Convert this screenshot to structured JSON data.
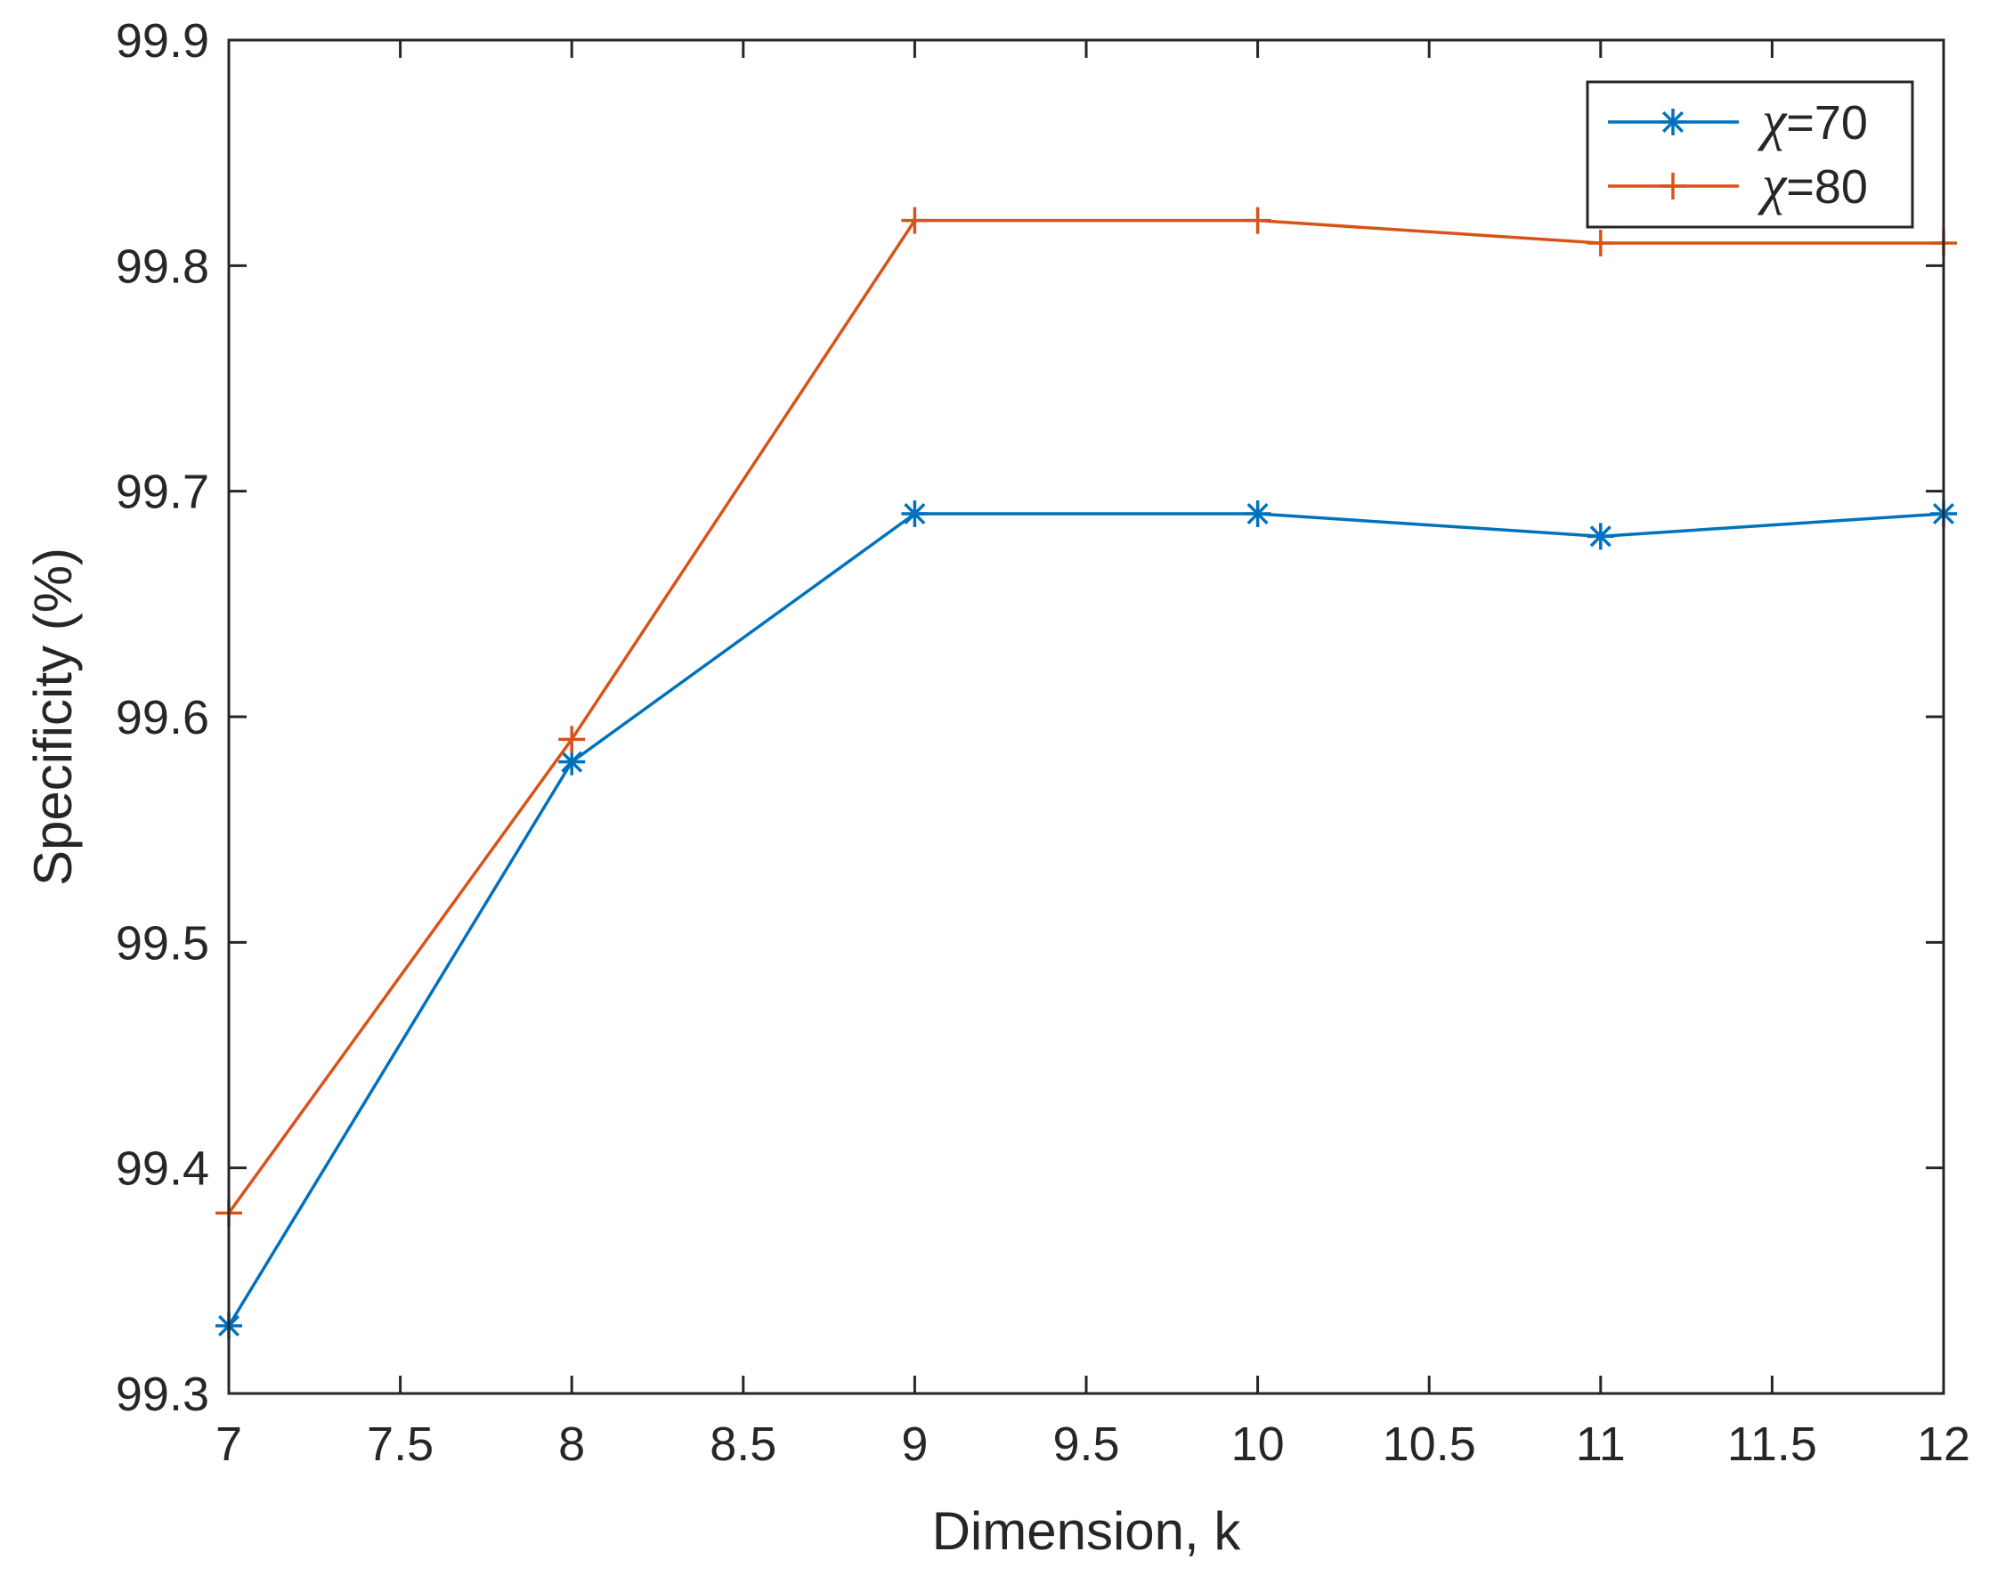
{
  "colors": {
    "series_1": "#0072BD",
    "series_2": "#D95319",
    "axis": "#262626",
    "background": "#ffffff"
  },
  "chart_data": {
    "type": "line",
    "title": "",
    "xlabel": "Dimension, k",
    "ylabel": "Specificity (%)",
    "xlim": [
      7,
      12
    ],
    "ylim": [
      99.3,
      99.9
    ],
    "x_ticks": [
      "7",
      "7.5",
      "8",
      "8.5",
      "9",
      "9.5",
      "10",
      "10.5",
      "11",
      "11.5",
      "12"
    ],
    "y_ticks": [
      "99.3",
      "99.4",
      "99.5",
      "99.6",
      "99.7",
      "99.8",
      "99.9"
    ],
    "grid": false,
    "legend_position": "top-right",
    "x": [
      7,
      8,
      9,
      10,
      11,
      12
    ],
    "series": [
      {
        "name": "χ=70",
        "legend_symbol": "χ",
        "legend_text": "=70",
        "marker": "asterisk",
        "color": "#0072BD",
        "values": [
          99.33,
          99.58,
          99.69,
          99.69,
          99.68,
          99.69
        ]
      },
      {
        "name": "χ=80",
        "legend_symbol": "χ",
        "legend_text": "=80",
        "marker": "plus",
        "color": "#D95319",
        "values": [
          99.38,
          99.59,
          99.82,
          99.82,
          99.81,
          99.81
        ]
      }
    ]
  }
}
